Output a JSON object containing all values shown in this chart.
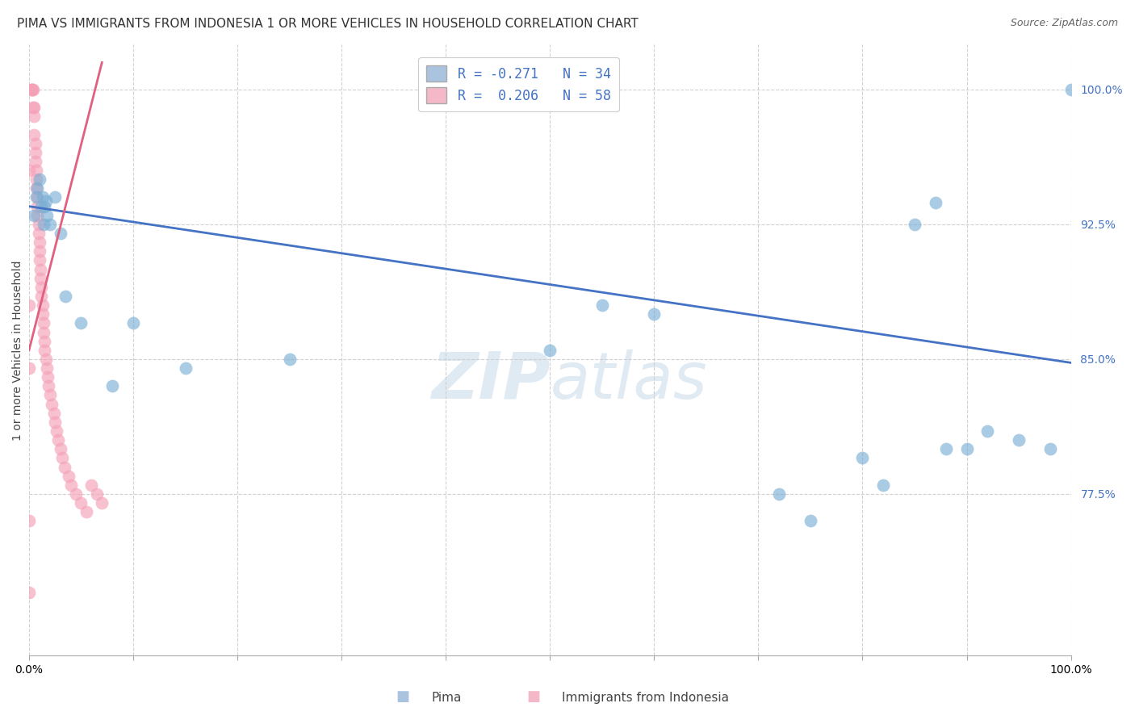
{
  "title": "PIMA VS IMMIGRANTS FROM INDONESIA 1 OR MORE VEHICLES IN HOUSEHOLD CORRELATION CHART",
  "source": "Source: ZipAtlas.com",
  "ylabel": "1 or more Vehicles in Household",
  "y_tick_values": [
    1.0,
    0.925,
    0.85,
    0.775
  ],
  "xlim": [
    0.0,
    1.0
  ],
  "ylim": [
    0.685,
    1.025
  ],
  "legend_label_blue": "R = -0.271   N = 34",
  "legend_label_pink": "R =  0.206   N = 58",
  "legend_color_blue": "#aac4e0",
  "legend_color_pink": "#f4b8c8",
  "watermark": "ZIPatlas",
  "blue_dot_color": "#7bafd4",
  "pink_dot_color": "#f4a0b8",
  "blue_line_color": "#4472c4",
  "pink_line_color": "#e06080",
  "blue_scatter_x": [
    0.005,
    0.007,
    0.008,
    0.01,
    0.012,
    0.013,
    0.014,
    0.015,
    0.016,
    0.017,
    0.02,
    0.025,
    0.03,
    0.035,
    0.05,
    0.08,
    0.1,
    0.15,
    0.25,
    0.5,
    0.55,
    0.6,
    0.72,
    0.75,
    0.8,
    0.82,
    0.85,
    0.87,
    0.88,
    0.9,
    0.92,
    0.95,
    0.98,
    1.0
  ],
  "blue_scatter_y": [
    0.93,
    0.94,
    0.945,
    0.95,
    0.935,
    0.94,
    0.925,
    0.935,
    0.938,
    0.93,
    0.925,
    0.94,
    0.92,
    0.885,
    0.87,
    0.835,
    0.87,
    0.845,
    0.85,
    0.855,
    0.88,
    0.875,
    0.775,
    0.76,
    0.795,
    0.78,
    0.925,
    0.937,
    0.8,
    0.8,
    0.81,
    0.805,
    0.8,
    1.0
  ],
  "pink_scatter_x": [
    0.0,
    0.0,
    0.0,
    0.0,
    0.002,
    0.002,
    0.003,
    0.004,
    0.004,
    0.005,
    0.005,
    0.005,
    0.006,
    0.006,
    0.006,
    0.007,
    0.007,
    0.007,
    0.008,
    0.008,
    0.008,
    0.009,
    0.009,
    0.01,
    0.01,
    0.01,
    0.011,
    0.011,
    0.012,
    0.012,
    0.013,
    0.013,
    0.014,
    0.014,
    0.015,
    0.015,
    0.016,
    0.017,
    0.018,
    0.019,
    0.02,
    0.022,
    0.024,
    0.025,
    0.026,
    0.028,
    0.03,
    0.032,
    0.034,
    0.038,
    0.04,
    0.045,
    0.05,
    0.055,
    0.06,
    0.065,
    0.07,
    0.0
  ],
  "pink_scatter_y": [
    0.72,
    0.845,
    0.88,
    0.955,
    1.0,
    1.0,
    1.0,
    1.0,
    0.99,
    0.99,
    0.985,
    0.975,
    0.97,
    0.965,
    0.96,
    0.955,
    0.95,
    0.945,
    0.94,
    0.935,
    0.93,
    0.925,
    0.92,
    0.915,
    0.91,
    0.905,
    0.9,
    0.895,
    0.89,
    0.885,
    0.88,
    0.875,
    0.87,
    0.865,
    0.86,
    0.855,
    0.85,
    0.845,
    0.84,
    0.835,
    0.83,
    0.825,
    0.82,
    0.815,
    0.81,
    0.805,
    0.8,
    0.795,
    0.79,
    0.785,
    0.78,
    0.775,
    0.77,
    0.765,
    0.78,
    0.775,
    0.77,
    0.76
  ],
  "blue_line_x0": 0.0,
  "blue_line_y0": 0.935,
  "blue_line_x1": 1.0,
  "blue_line_y1": 0.848,
  "pink_line_x0": 0.0,
  "pink_line_y0": 0.855,
  "pink_line_x1": 0.07,
  "pink_line_y1": 1.015,
  "background_color": "#ffffff",
  "grid_color": "#cccccc",
  "title_fontsize": 11,
  "source_fontsize": 9,
  "axis_label_fontsize": 10,
  "tick_fontsize": 10,
  "legend_fontsize": 12
}
